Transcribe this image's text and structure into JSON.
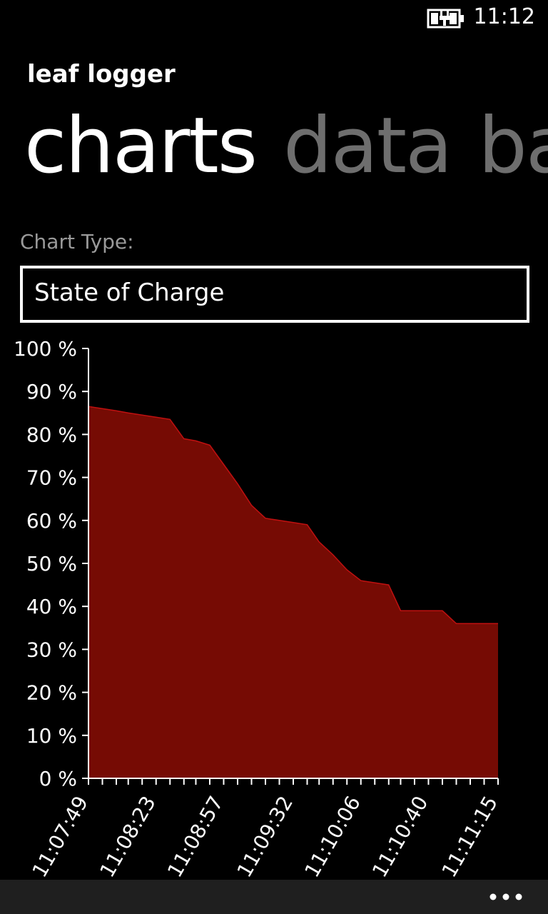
{
  "status": {
    "time": "11:12",
    "battery_icon": "battery-charging-icon"
  },
  "app": {
    "title": "leaf logger"
  },
  "pivot": {
    "items": [
      {
        "label": "charts",
        "active": true
      },
      {
        "label": "data",
        "active": false
      },
      {
        "label": "battery",
        "active": false
      }
    ]
  },
  "chart_type": {
    "label": "Chart Type:",
    "selected": "State of Charge"
  },
  "chart_data": {
    "type": "area",
    "title": "",
    "xlabel": "",
    "ylabel": "",
    "ylim": [
      0,
      100
    ],
    "y_ticks": [
      "0 %",
      "10 %",
      "20 %",
      "30 %",
      "40 %",
      "50 %",
      "60 %",
      "70 %",
      "80 %",
      "90 %",
      "100 %"
    ],
    "x_tick_labels": [
      "11:07:49",
      "11:08:23",
      "11:08:57",
      "11:09:32",
      "11:10:06",
      "11:10:40",
      "11:11:15"
    ],
    "series": [
      {
        "color": "#760b04",
        "x": [
          "11:07:49",
          "11:07:56",
          "11:08:03",
          "11:08:09",
          "11:08:16",
          "11:08:23",
          "11:08:30",
          "11:08:37",
          "11:08:43",
          "11:08:50",
          "11:08:57",
          "11:09:04",
          "11:09:11",
          "11:09:18",
          "11:09:25",
          "11:09:32",
          "11:09:39",
          "11:09:45",
          "11:09:52",
          "11:09:59",
          "11:10:06",
          "11:10:13",
          "11:10:20",
          "11:10:26",
          "11:10:33",
          "11:10:40",
          "11:10:47",
          "11:10:54",
          "11:11:01",
          "11:11:08",
          "11:11:15"
        ],
        "values": [
          86.5,
          86.0,
          85.5,
          85.0,
          84.5,
          84.0,
          83.5,
          79.0,
          78.5,
          77.5,
          73.0,
          68.5,
          63.5,
          60.5,
          60.0,
          59.5,
          59.0,
          55.0,
          52.0,
          48.5,
          46.0,
          45.5,
          45.0,
          39.0,
          39.0,
          39.0,
          39.0,
          36.0,
          36.0,
          36.0,
          36.0
        ]
      }
    ]
  },
  "app_bar": {
    "more_icon": "more-ellipsis-icon"
  }
}
